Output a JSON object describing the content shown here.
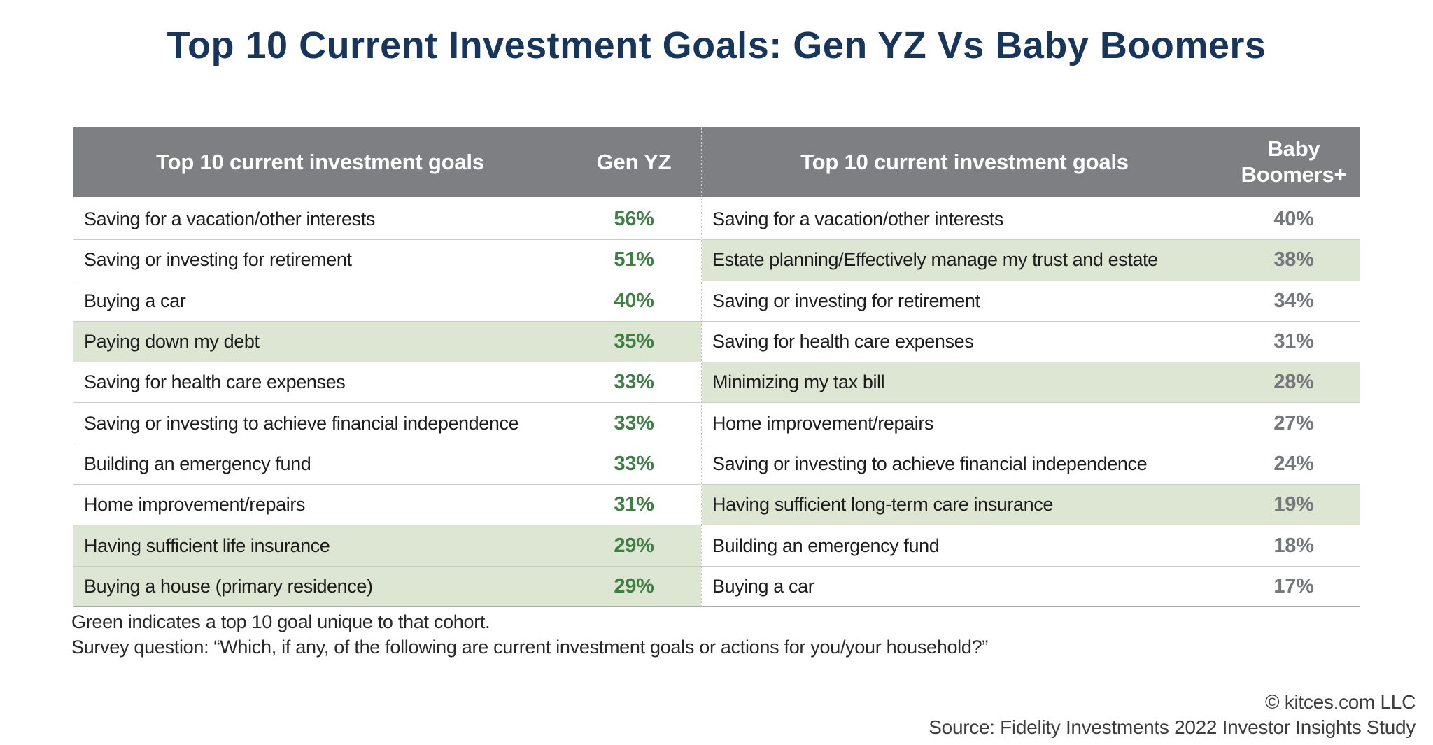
{
  "title": "Top 10 Current Investment Goals: Gen YZ Vs Baby Boomers",
  "chart_data": {
    "type": "table",
    "title": "Top 10 Current Investment Goals: Gen YZ Vs Baby Boomers",
    "layout": "two side-by-side ranked tables sharing one header band; green rows mark goals unique to that cohort",
    "tables": [
      {
        "cohort": "Gen YZ",
        "goal_header": "Top 10 current investment goals",
        "value_header": "Gen YZ",
        "rows": [
          {
            "goal": "Saving for a vacation/other interests",
            "pct": 56,
            "value": "56%",
            "unique": false
          },
          {
            "goal": "Saving or investing for retirement",
            "pct": 51,
            "value": "51%",
            "unique": false
          },
          {
            "goal": "Buying a car",
            "pct": 40,
            "value": "40%",
            "unique": false
          },
          {
            "goal": "Paying down my debt",
            "pct": 35,
            "value": "35%",
            "unique": true
          },
          {
            "goal": "Saving for health care expenses",
            "pct": 33,
            "value": "33%",
            "unique": false
          },
          {
            "goal": "Saving or investing to achieve financial independence",
            "pct": 33,
            "value": "33%",
            "unique": false
          },
          {
            "goal": "Building an emergency fund",
            "pct": 33,
            "value": "33%",
            "unique": false
          },
          {
            "goal": "Home improvement/repairs",
            "pct": 31,
            "value": "31%",
            "unique": false
          },
          {
            "goal": "Having sufficient life insurance",
            "pct": 29,
            "value": "29%",
            "unique": true
          },
          {
            "goal": "Buying a house (primary residence)",
            "pct": 29,
            "value": "29%",
            "unique": true
          }
        ]
      },
      {
        "cohort": "Baby Boomers+",
        "goal_header": "Top 10 current investment goals",
        "value_header": "Baby Boomers+",
        "rows": [
          {
            "goal": "Saving for a vacation/other interests",
            "pct": 40,
            "value": "40%",
            "unique": false
          },
          {
            "goal": "Estate planning/Effectively manage my trust and estate",
            "pct": 38,
            "value": "38%",
            "unique": true
          },
          {
            "goal": "Saving or investing for retirement",
            "pct": 34,
            "value": "34%",
            "unique": false
          },
          {
            "goal": "Saving for health care expenses",
            "pct": 31,
            "value": "31%",
            "unique": false
          },
          {
            "goal": "Minimizing my tax bill",
            "pct": 28,
            "value": "28%",
            "unique": true
          },
          {
            "goal": "Home improvement/repairs",
            "pct": 27,
            "value": "27%",
            "unique": false
          },
          {
            "goal": "Saving or investing to achieve financial independence",
            "pct": 24,
            "value": "24%",
            "unique": false
          },
          {
            "goal": "Having sufficient long-term care insurance",
            "pct": 19,
            "value": "19%",
            "unique": true
          },
          {
            "goal": "Building an emergency fund",
            "pct": 18,
            "value": "18%",
            "unique": false
          },
          {
            "goal": "Buying a car",
            "pct": 17,
            "value": "17%",
            "unique": false
          }
        ]
      }
    ]
  },
  "notes": {
    "legend": "Green indicates a top 10 goal unique to that cohort.",
    "survey": "Survey question: “Which, if any, of the following are current investment goals or actions for you/your household?”"
  },
  "footer": {
    "copyright": "© kitces.com LLC",
    "source": "Source: Fidelity Investments 2022 Investor Insights Study"
  },
  "colors": {
    "title": "#18355b",
    "header_bg": "#7d7f82",
    "highlight_bg": "#dce6d3",
    "left_value": "#3f7f43",
    "right_value": "#75787b"
  }
}
